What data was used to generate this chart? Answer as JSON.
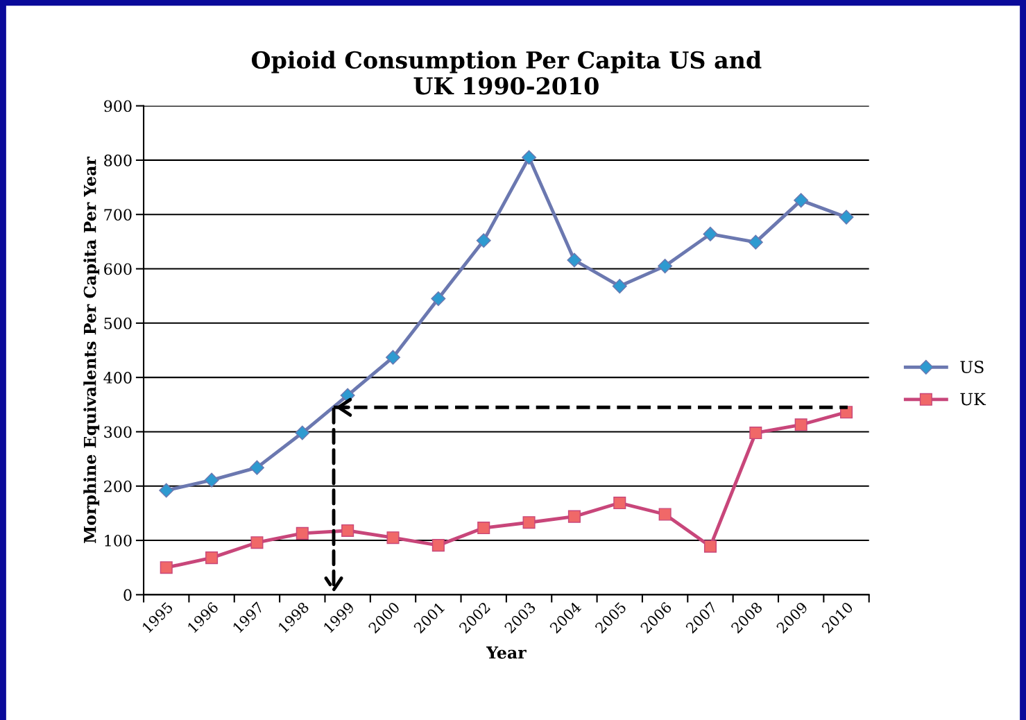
{
  "chart_data": {
    "type": "line",
    "title": "Opioid Consumption Per Capita US and\nUK 1990-2010",
    "xlabel": "Year",
    "ylabel": "Morphine Equivalents Per Capita Per Year",
    "categories": [
      "1995",
      "1996",
      "1997",
      "1998",
      "1999",
      "2000",
      "2001",
      "2002",
      "2003",
      "2004",
      "2005",
      "2006",
      "2007",
      "2008",
      "2009",
      "2010"
    ],
    "series": [
      {
        "name": "US",
        "color": "#6b78b0",
        "marker": "diamond",
        "values": [
          192,
          211,
          234,
          298,
          367,
          437,
          545,
          652,
          805,
          616,
          568,
          605,
          664,
          649,
          726,
          695
        ]
      },
      {
        "name": "UK",
        "color": "#c8467a",
        "marker": "square",
        "values": [
          50,
          68,
          96,
          113,
          118,
          105,
          91,
          123,
          133,
          144,
          169,
          148,
          89,
          298,
          313,
          336
        ]
      }
    ],
    "ref_lines": [
      {
        "axis": "y",
        "value": 345,
        "color": "#000000",
        "line_style": "dashed"
      }
    ],
    "ylim": [
      0,
      900
    ],
    "yticks": [
      0,
      100,
      200,
      300,
      400,
      500,
      600,
      700,
      800,
      900
    ],
    "grid": "y",
    "legend": "right",
    "line_style": "solid"
  }
}
